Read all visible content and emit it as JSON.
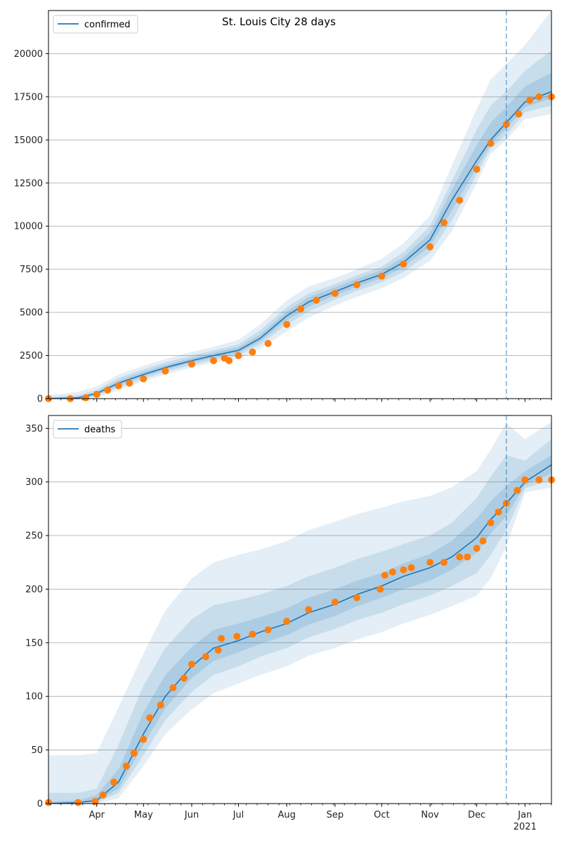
{
  "figure": {
    "title": "St. Louis City 28 days"
  },
  "colors": {
    "model": "#1f77b4",
    "observed": "#ff7f0e",
    "band": "#1f77b4",
    "grid": "#b0b0b0",
    "forecast_line": "#1f77b4"
  },
  "x_axis": {
    "start": "2020-03-01",
    "end": "2021-01-18",
    "forecast_start": "2020-12-20",
    "month_ticks": [
      {
        "date": "2020-04-01",
        "label": "Apr"
      },
      {
        "date": "2020-05-01",
        "label": "May"
      },
      {
        "date": "2020-06-01",
        "label": "Jun"
      },
      {
        "date": "2020-07-01",
        "label": "Jul"
      },
      {
        "date": "2020-08-01",
        "label": "Aug"
      },
      {
        "date": "2020-09-01",
        "label": "Sep"
      },
      {
        "date": "2020-10-01",
        "label": "Oct"
      },
      {
        "date": "2020-11-01",
        "label": "Nov"
      },
      {
        "date": "2020-12-01",
        "label": "Dec"
      },
      {
        "date": "2021-01-01",
        "label": "Jan"
      }
    ],
    "year_label": "2021"
  },
  "chart_data": [
    {
      "type": "line",
      "legend": "confirmed",
      "legend_position": "top-left",
      "ylim": [
        0,
        22500
      ],
      "yticks": [
        0,
        2500,
        5000,
        7500,
        10000,
        12500,
        15000,
        17500,
        20000
      ],
      "ytick_labels": [
        "0",
        "2500",
        "5000",
        "7500",
        "10000",
        "12500",
        "15000",
        "17500",
        "20000"
      ],
      "grid": "horizontal",
      "model": {
        "x": [
          "2020-03-01",
          "2020-03-20",
          "2020-04-01",
          "2020-04-15",
          "2020-05-01",
          "2020-05-15",
          "2020-06-01",
          "2020-06-15",
          "2020-07-01",
          "2020-07-15",
          "2020-08-01",
          "2020-08-15",
          "2020-09-01",
          "2020-09-15",
          "2020-10-01",
          "2020-10-15",
          "2020-11-01",
          "2020-11-15",
          "2020-12-01",
          "2020-12-10",
          "2020-12-20",
          "2021-01-01",
          "2021-01-18"
        ],
        "y": [
          0,
          50,
          300,
          900,
          1400,
          1800,
          2200,
          2500,
          2800,
          3500,
          4800,
          5600,
          6200,
          6700,
          7200,
          7900,
          9200,
          11500,
          13800,
          15000,
          16000,
          17200,
          17800
        ]
      },
      "bands": [
        {
          "lower": [
            0,
            0,
            50,
            500,
            1000,
            1400,
            1800,
            2100,
            2300,
            2900,
            3900,
            4700,
            5400,
            5900,
            6400,
            7000,
            8000,
            9700,
            12500,
            14200,
            15000,
            16200,
            16500
          ],
          "upper": [
            200,
            400,
            700,
            1400,
            1900,
            2300,
            2700,
            3000,
            3400,
            4300,
            5700,
            6500,
            7000,
            7500,
            8100,
            9000,
            10600,
            13500,
            16800,
            18500,
            19400,
            20500,
            22500
          ]
        },
        {
          "lower": [
            0,
            0,
            150,
            650,
            1150,
            1550,
            1950,
            2250,
            2500,
            3150,
            4300,
            5050,
            5750,
            6250,
            6750,
            7350,
            8450,
            10300,
            13000,
            14500,
            15300,
            16600,
            17000
          ],
          "upper": [
            100,
            200,
            500,
            1200,
            1700,
            2100,
            2500,
            2800,
            3150,
            3950,
            5300,
            6100,
            6650,
            7150,
            7650,
            8500,
            10000,
            12600,
            15600,
            17000,
            17800,
            19000,
            20200
          ]
        },
        {
          "lower": [
            0,
            10,
            220,
            780,
            1280,
            1680,
            2080,
            2380,
            2650,
            3330,
            4550,
            5330,
            5980,
            6480,
            6980,
            7630,
            8830,
            10900,
            13400,
            14750,
            15650,
            16900,
            17400
          ],
          "upper": [
            40,
            100,
            400,
            1050,
            1550,
            1950,
            2350,
            2650,
            2980,
            3720,
            5050,
            5880,
            6450,
            6950,
            7450,
            8200,
            9600,
            12100,
            14700,
            16000,
            16900,
            18100,
            18900
          ]
        }
      ],
      "observed": {
        "x": [
          "2020-03-01",
          "2020-03-15",
          "2020-03-25",
          "2020-04-01",
          "2020-04-08",
          "2020-04-15",
          "2020-04-22",
          "2020-05-01",
          "2020-05-15",
          "2020-06-01",
          "2020-06-15",
          "2020-06-22",
          "2020-06-25",
          "2020-07-01",
          "2020-07-10",
          "2020-07-20",
          "2020-08-01",
          "2020-08-10",
          "2020-08-20",
          "2020-09-01",
          "2020-09-15",
          "2020-10-01",
          "2020-10-15",
          "2020-11-01",
          "2020-11-10",
          "2020-11-20",
          "2020-12-01",
          "2020-12-10",
          "2020-12-20",
          "2020-12-28",
          "2021-01-04",
          "2021-01-10",
          "2021-01-18"
        ],
        "y": [
          0,
          0,
          50,
          250,
          500,
          750,
          900,
          1150,
          1600,
          2000,
          2200,
          2350,
          2200,
          2500,
          2700,
          3200,
          4300,
          5200,
          5700,
          6100,
          6600,
          7100,
          7800,
          8800,
          10200,
          11500,
          13300,
          14800,
          15900,
          16500,
          17300,
          17500,
          17500
        ]
      }
    },
    {
      "type": "line",
      "legend": "deaths",
      "legend_position": "top-left",
      "ylim": [
        0,
        362
      ],
      "yticks": [
        0,
        50,
        100,
        150,
        200,
        250,
        300,
        350
      ],
      "ytick_labels": [
        "0",
        "50",
        "100",
        "150",
        "200",
        "250",
        "300",
        "350"
      ],
      "grid": "horizontal",
      "model": {
        "x": [
          "2020-03-01",
          "2020-03-20",
          "2020-04-01",
          "2020-04-15",
          "2020-05-01",
          "2020-05-15",
          "2020-06-01",
          "2020-06-15",
          "2020-07-01",
          "2020-07-15",
          "2020-08-01",
          "2020-08-15",
          "2020-09-01",
          "2020-09-15",
          "2020-10-01",
          "2020-10-15",
          "2020-11-01",
          "2020-11-15",
          "2020-12-01",
          "2020-12-10",
          "2020-12-20",
          "2021-01-01",
          "2021-01-18"
        ],
        "y": [
          0,
          1,
          3,
          20,
          65,
          100,
          128,
          145,
          152,
          160,
          168,
          178,
          186,
          195,
          203,
          212,
          220,
          230,
          248,
          265,
          280,
          300,
          316
        ]
      },
      "bands": [
        {
          "lower": [
            0,
            0,
            0,
            5,
            35,
            65,
            88,
            103,
            112,
            120,
            128,
            138,
            145,
            153,
            160,
            168,
            176,
            184,
            194,
            210,
            240,
            290,
            295
          ],
          "upper": [
            45,
            45,
            47,
            90,
            140,
            180,
            210,
            225,
            232,
            237,
            245,
            255,
            263,
            270,
            276,
            282,
            287,
            295,
            310,
            330,
            355,
            340,
            356
          ]
        },
        {
          "lower": [
            0,
            0,
            1,
            10,
            45,
            78,
            104,
            120,
            128,
            137,
            145,
            155,
            163,
            171,
            178,
            186,
            194,
            203,
            215,
            232,
            255,
            294,
            302
          ],
          "upper": [
            10,
            10,
            14,
            55,
            110,
            145,
            172,
            185,
            190,
            195,
            203,
            212,
            220,
            228,
            235,
            242,
            250,
            262,
            285,
            305,
            325,
            320,
            340
          ]
        },
        {
          "lower": [
            0,
            0,
            2,
            14,
            55,
            89,
            117,
            133,
            141,
            149,
            157,
            167,
            175,
            184,
            192,
            200,
            208,
            218,
            234,
            252,
            268,
            297,
            308
          ],
          "upper": [
            2,
            3,
            8,
            32,
            85,
            120,
            146,
            162,
            168,
            174,
            182,
            192,
            200,
            208,
            215,
            224,
            233,
            245,
            266,
            282,
            296,
            310,
            325
          ]
        }
      ],
      "observed": {
        "x": [
          "2020-03-01",
          "2020-03-20",
          "2020-03-31",
          "2020-04-05",
          "2020-04-12",
          "2020-04-20",
          "2020-04-25",
          "2020-05-01",
          "2020-05-05",
          "2020-05-12",
          "2020-05-20",
          "2020-05-27",
          "2020-06-01",
          "2020-06-10",
          "2020-06-18",
          "2020-06-20",
          "2020-06-30",
          "2020-07-10",
          "2020-07-20",
          "2020-08-01",
          "2020-08-15",
          "2020-09-01",
          "2020-09-15",
          "2020-09-30",
          "2020-10-03",
          "2020-10-08",
          "2020-10-15",
          "2020-10-20",
          "2020-11-01",
          "2020-11-10",
          "2020-11-20",
          "2020-11-25",
          "2020-12-01",
          "2020-12-05",
          "2020-12-10",
          "2020-12-15",
          "2020-12-20",
          "2020-12-27",
          "2021-01-01",
          "2021-01-10",
          "2021-01-18"
        ],
        "y": [
          1,
          1,
          2,
          8,
          20,
          35,
          47,
          60,
          80,
          92,
          108,
          117,
          130,
          137,
          143,
          154,
          156,
          158,
          162,
          170,
          181,
          188,
          192,
          200,
          213,
          216,
          218,
          220,
          225,
          225,
          230,
          230,
          238,
          245,
          262,
          272,
          280,
          292,
          302,
          302,
          302
        ]
      }
    }
  ]
}
